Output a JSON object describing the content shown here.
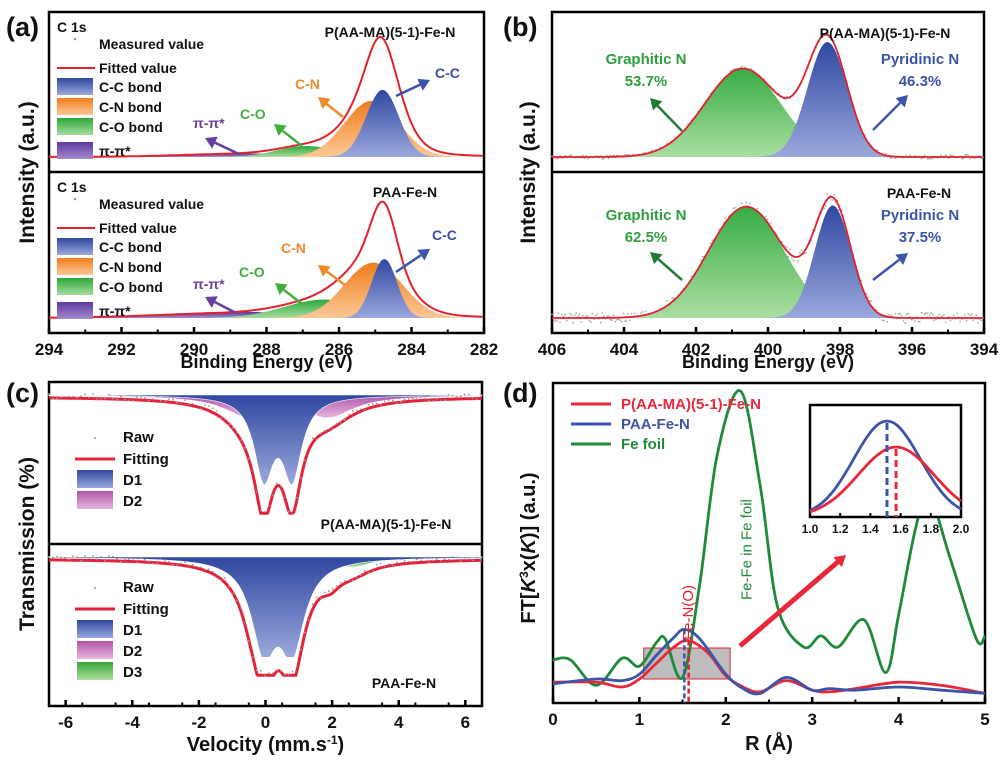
{
  "chart_data": [
    {
      "panel": "(a)",
      "type": "area",
      "xlabel": "Binding Energy (eV)",
      "ylabel": "Intensity (a.u.)",
      "xlim": [
        294,
        282
      ],
      "xticks": [
        "294",
        "292",
        "290",
        "288",
        "286",
        "284",
        "282"
      ],
      "subplots": [
        {
          "sample": "P(AA-MA)(5-1)-Fe-N",
          "core_level": "C 1s",
          "legend": [
            "Measured value",
            "Fitted value",
            "C-C bond",
            "C-N bond",
            "C-O bond",
            "π-π*"
          ],
          "components": [
            {
              "name": "C-C bond",
              "label": "C-C",
              "center": 284.8,
              "height": 0.55,
              "width": 0.45,
              "color": "#3b4fa0"
            },
            {
              "name": "C-N bond",
              "label": "C-N",
              "center": 285.1,
              "height": 0.46,
              "width": 0.75,
              "color": "#f08a2a"
            },
            {
              "name": "C-O bond",
              "label": "C-O",
              "center": 286.9,
              "height": 0.09,
              "width": 0.8,
              "color": "#3fae3f"
            },
            {
              "name": "π-π*",
              "label": "π-π*",
              "center": 288.8,
              "height": 0.03,
              "width": 1.6,
              "color": "#6a3fa0"
            }
          ],
          "fit_peak": 284.85
        },
        {
          "sample": "PAA-Fe-N",
          "core_level": "C 1s",
          "legend": [
            "Measured value",
            "Fitted value",
            "C-C bond",
            "C-N bond",
            "C-O bond",
            "π-π*"
          ],
          "components": [
            {
              "name": "C-C bond",
              "label": "C-C",
              "center": 284.75,
              "height": 0.48,
              "width": 0.35,
              "color": "#3b4fa0"
            },
            {
              "name": "C-N bond",
              "label": "C-N",
              "center": 285.05,
              "height": 0.45,
              "width": 0.8,
              "color": "#f08a2a"
            },
            {
              "name": "C-O bond",
              "label": "C-O",
              "center": 286.4,
              "height": 0.15,
              "width": 1.1,
              "color": "#3fae3f"
            },
            {
              "name": "π-π*",
              "label": "π-π*",
              "center": 288.8,
              "height": 0.05,
              "width": 2.2,
              "color": "#6a3fa0"
            }
          ],
          "fit_peak": 284.8
        }
      ]
    },
    {
      "panel": "(b)",
      "type": "area",
      "xlabel": "Binding Energy (eV)",
      "ylabel": "Intensity (a.u.)",
      "xlim": [
        406,
        394
      ],
      "xticks": [
        "406",
        "404",
        "402",
        "400",
        "398",
        "396",
        "394"
      ],
      "subplots": [
        {
          "sample": "P(AA-MA)(5-1)-Fe-N",
          "components": [
            {
              "name": "Graphitic N",
              "percent": "53.7%",
              "center": 400.7,
              "height": 0.77,
              "width": 1.05,
              "color": "#2e9e3e"
            },
            {
              "name": "Pyridinic N",
              "percent": "46.3%",
              "center": 398.35,
              "height": 1.0,
              "width": 0.55,
              "color": "#3b55a8"
            }
          ]
        },
        {
          "sample": "PAA-Fe-N",
          "components": [
            {
              "name": "Graphitic N",
              "percent": "62.5%",
              "center": 400.6,
              "height": 0.96,
              "width": 1.05,
              "color": "#2e9e3e"
            },
            {
              "name": "Pyridinic N",
              "percent": "37.5%",
              "center": 398.2,
              "height": 0.97,
              "width": 0.5,
              "color": "#3b55a8"
            }
          ]
        }
      ]
    },
    {
      "panel": "(c)",
      "type": "area",
      "xlabel": "Velocity (mm.s-1)",
      "ylabel": "Transmission (%)",
      "xlim": [
        -6.5,
        6.5
      ],
      "xticks": [
        "-6",
        "-4",
        "-2",
        "0",
        "2",
        "4",
        "6"
      ],
      "subplots": [
        {
          "sample": "P(AA-MA)(5-1)-Fe-N",
          "legend": [
            "Raw",
            "Fitting",
            "D1",
            "D2"
          ],
          "components": [
            {
              "name": "D1",
              "type": "doublet",
              "lines": [
                -0.05,
                0.8
              ],
              "depth": 0.78,
              "width": 0.35,
              "color": "#3f59ad"
            },
            {
              "name": "D2",
              "type": "doublet",
              "lines": [
                -0.5,
                1.9
              ],
              "depth": 0.17,
              "width": 0.9,
              "color": "#c46ab5"
            }
          ]
        },
        {
          "sample": "PAA-Fe-N",
          "legend": [
            "Raw",
            "Fitting",
            "D1",
            "D2",
            "D3"
          ],
          "components": [
            {
              "name": "D1",
              "type": "doublet",
              "lines": [
                -0.05,
                0.8
              ],
              "depth": 0.85,
              "width": 0.45,
              "color": "#3f59ad"
            },
            {
              "name": "D2",
              "type": "doublet",
              "lines": [
                -0.45,
                1.95
              ],
              "depth": 0.1,
              "width": 0.35,
              "color": "#c46ab5"
            },
            {
              "name": "D3",
              "type": "doublet",
              "lines": [
                -0.4,
                2.6
              ],
              "depth": 0.08,
              "width": 0.7,
              "color": "#4cb84c"
            }
          ]
        }
      ]
    },
    {
      "panel": "(d)",
      "type": "line",
      "xlabel": "R (Å)",
      "ylabel": "FT[K3x(K)] (a.u.)",
      "xlim": [
        0,
        5
      ],
      "xticks": [
        "0",
        "1",
        "2",
        "3",
        "4",
        "5"
      ],
      "legend": [
        "P(AA-MA)(5-1)-Fe-N",
        "PAA-Fe-N",
        "Fe foil"
      ],
      "series": [
        {
          "name": "P(AA-MA)(5-1)-Fe-N",
          "color": "#e8283a",
          "x": [
            0,
            0.5,
            0.8,
            1.0,
            1.2,
            1.4,
            1.57,
            1.8,
            2.0,
            2.2,
            2.4,
            2.7,
            3.0,
            3.2,
            3.5,
            4.0,
            4.5,
            5.0
          ],
          "y": [
            0.08,
            0.08,
            0.05,
            0.1,
            0.2,
            0.3,
            0.34,
            0.26,
            0.12,
            0.05,
            0.02,
            0.09,
            0.03,
            0.02,
            0.04,
            0.08,
            0.06,
            0.01
          ]
        },
        {
          "name": "PAA-Fe-N",
          "color": "#3b55a8",
          "x": [
            0,
            0.5,
            0.8,
            1.0,
            1.2,
            1.4,
            1.52,
            1.7,
            2.0,
            2.2,
            2.4,
            2.7,
            3.0,
            3.2,
            3.5,
            4.0,
            4.5,
            5.0
          ],
          "y": [
            0.07,
            0.1,
            0.09,
            0.13,
            0.25,
            0.36,
            0.41,
            0.35,
            0.13,
            0.04,
            0.01,
            0.11,
            0.03,
            0.04,
            0.03,
            0.05,
            0.03,
            0.01
          ]
        },
        {
          "name": "Fe foil",
          "color": "#1e8a3a",
          "x": [
            0,
            0.2,
            0.5,
            0.8,
            1.0,
            1.2,
            1.3,
            1.5,
            1.7,
            1.9,
            2.17,
            2.4,
            2.6,
            2.9,
            3.1,
            3.3,
            3.6,
            3.85,
            4.0,
            4.2,
            4.35,
            4.6,
            4.9,
            5.0
          ],
          "y": [
            0.22,
            0.22,
            0.06,
            0.23,
            0.18,
            0.33,
            0.35,
            0.11,
            0.7,
            1.5,
            1.9,
            1.3,
            0.55,
            0.3,
            0.37,
            0.3,
            0.47,
            0.14,
            0.5,
            1.05,
            1.25,
            0.85,
            0.35,
            0.37
          ]
        }
      ],
      "annotations": [
        "Fe-N(O)",
        "Fe-Fe in Fe foil"
      ],
      "inset": {
        "xlim": [
          1.0,
          2.0
        ],
        "xticks": [
          "1.0",
          "1.2",
          "1.4",
          "1.6",
          "1.8",
          "2.0"
        ],
        "peaks": [
          {
            "series": "PAA-Fe-N",
            "x": 1.51
          },
          {
            "series": "P(AA-MA)(5-1)-Fe-N",
            "x": 1.57
          }
        ]
      }
    }
  ]
}
